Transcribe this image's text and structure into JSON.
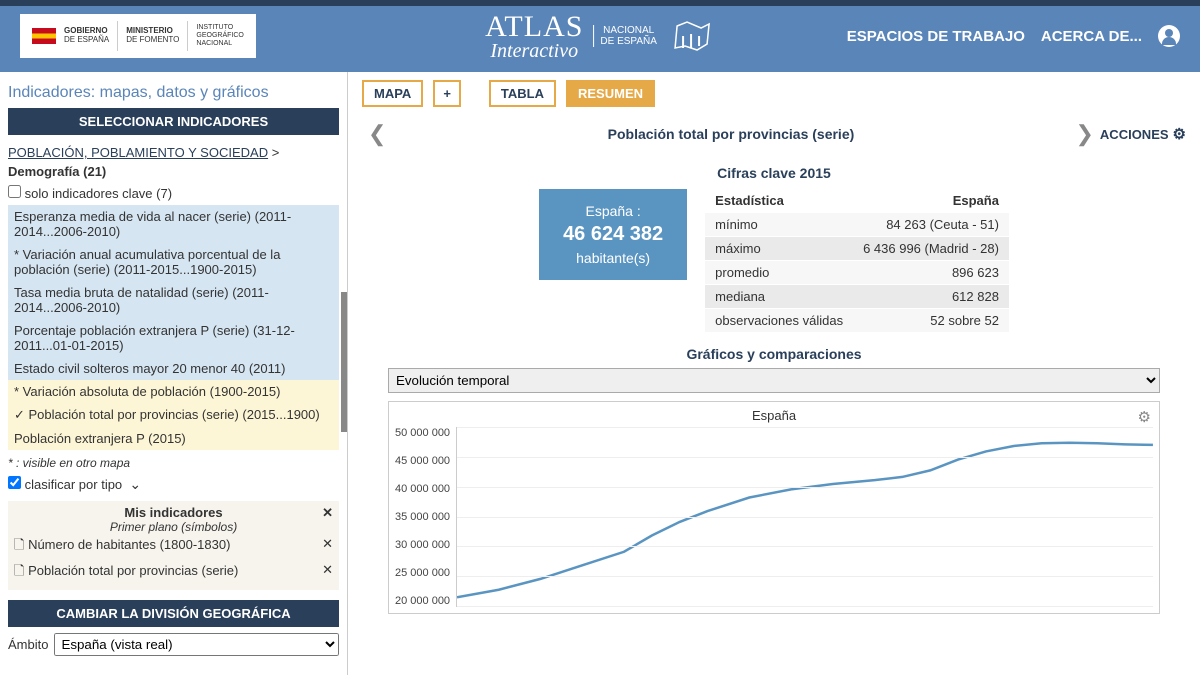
{
  "header": {
    "gov_lines": [
      "GOBIERNO",
      "DE ESPAÑA"
    ],
    "ministry_lines": [
      "MINISTERIO",
      "DE FOMENTO"
    ],
    "ign_lines": [
      "INSTITUTO",
      "GEOGRÁFICO",
      "NACIONAL"
    ],
    "title_main": "ATLAS",
    "title_sub1": "NACIONAL",
    "title_sub2": "DE ESPAÑA",
    "interactive": "Interactivo",
    "nav_workspaces": "ESPACIOS DE TRABAJO",
    "nav_about": "ACERCA DE..."
  },
  "sidebar": {
    "title": "Indicadores: mapas, datos y gráficos",
    "select_header": "SELECCIONAR INDICADORES",
    "breadcrumb_link": "POBLACIÓN, POBLAMIENTO Y SOCIEDAD",
    "breadcrumb_sep": " >",
    "demo_label": "Demografía (21)",
    "only_key_label": "solo indicadores clave (7)",
    "indicators": [
      {
        "text": "Esperanza media de vida al nacer (serie) (2011-2014...2006-2010)",
        "cls": "blue"
      },
      {
        "text": "* Variación anual acumulativa porcentual de la población (serie) (2011-2015...1900-2015)",
        "cls": "blue"
      },
      {
        "text": "Tasa media bruta de natalidad (serie) (2011-2014...2006-2010)",
        "cls": "blue"
      },
      {
        "text": "Porcentaje población extranjera P (serie) (31-12-2011...01-01-2015)",
        "cls": "blue"
      },
      {
        "text": "Estado civil solteros mayor 20 menor 40 (2011)",
        "cls": "blue"
      },
      {
        "text": "* Variación absoluta de población (1900-2015)",
        "cls": "yellow"
      },
      {
        "text": "✓ Población total por provincias (serie) (2015...1900)",
        "cls": "yellow"
      },
      {
        "text": "Población extranjera P (2015)",
        "cls": "yellow"
      }
    ],
    "legend_note": "* : visible en otro mapa",
    "classify_label": "clasificar por tipo",
    "mis_ind_title": "Mis indicadores",
    "mis_ind_sub": "Primer plano (símbolos)",
    "mis_items": [
      {
        "text": "Número de habitantes (1800-1830)"
      },
      {
        "text": "Población total por provincias (serie)"
      }
    ],
    "geo_header": "CAMBIAR LA DIVISIÓN GEOGRÁFICA",
    "ambito_label": "Ámbito",
    "ambito_value": "España (vista real)"
  },
  "main": {
    "tabs": {
      "mapa": "MAPA",
      "plus": "+",
      "tabla": "TABLA",
      "resumen": "RESUMEN"
    },
    "title": "Población total por provincias (serie)",
    "acciones": "ACCIONES",
    "cifras_title": "Cifras clave 2015",
    "stat_box": {
      "label": "España :",
      "value": "46 624 382",
      "unit": "habitante(s)"
    },
    "stat_table": {
      "col1": "Estadística",
      "col2": "España",
      "rows": [
        {
          "k": "mínimo",
          "v": "84 263 (Ceuta - 51)"
        },
        {
          "k": "máximo",
          "v": "6 436 996 (Madrid - 28)"
        },
        {
          "k": "promedio",
          "v": "896 623"
        },
        {
          "k": "mediana",
          "v": "612 828"
        },
        {
          "k": "observaciones válidas",
          "v": "52 sobre 52"
        }
      ]
    },
    "graf_title": "Gráficos y comparaciones",
    "graf_select": "Evolución temporal",
    "chart": {
      "title": "España",
      "type": "line",
      "line_color": "#5a95c2",
      "line_width": 2.5,
      "grid_color": "#eeeeee",
      "background": "#ffffff",
      "y_ticks": [
        "50 000 000",
        "45 000 000",
        "40 000 000",
        "35 000 000",
        "30 000 000",
        "25 000 000",
        "20 000 000"
      ],
      "y_min": 17000000,
      "y_max": 50000000,
      "series": [
        {
          "x": 0.0,
          "y": 18600000
        },
        {
          "x": 0.06,
          "y": 20000000
        },
        {
          "x": 0.12,
          "y": 22000000
        },
        {
          "x": 0.18,
          "y": 24500000
        },
        {
          "x": 0.24,
          "y": 27000000
        },
        {
          "x": 0.28,
          "y": 30000000
        },
        {
          "x": 0.32,
          "y": 32500000
        },
        {
          "x": 0.36,
          "y": 34500000
        },
        {
          "x": 0.42,
          "y": 37000000
        },
        {
          "x": 0.48,
          "y": 38500000
        },
        {
          "x": 0.54,
          "y": 39500000
        },
        {
          "x": 0.6,
          "y": 40200000
        },
        {
          "x": 0.64,
          "y": 40800000
        },
        {
          "x": 0.68,
          "y": 42000000
        },
        {
          "x": 0.72,
          "y": 44000000
        },
        {
          "x": 0.76,
          "y": 45500000
        },
        {
          "x": 0.8,
          "y": 46500000
        },
        {
          "x": 0.84,
          "y": 47000000
        },
        {
          "x": 0.88,
          "y": 47100000
        },
        {
          "x": 0.92,
          "y": 47000000
        },
        {
          "x": 0.96,
          "y": 46800000
        },
        {
          "x": 1.0,
          "y": 46700000
        }
      ]
    }
  }
}
